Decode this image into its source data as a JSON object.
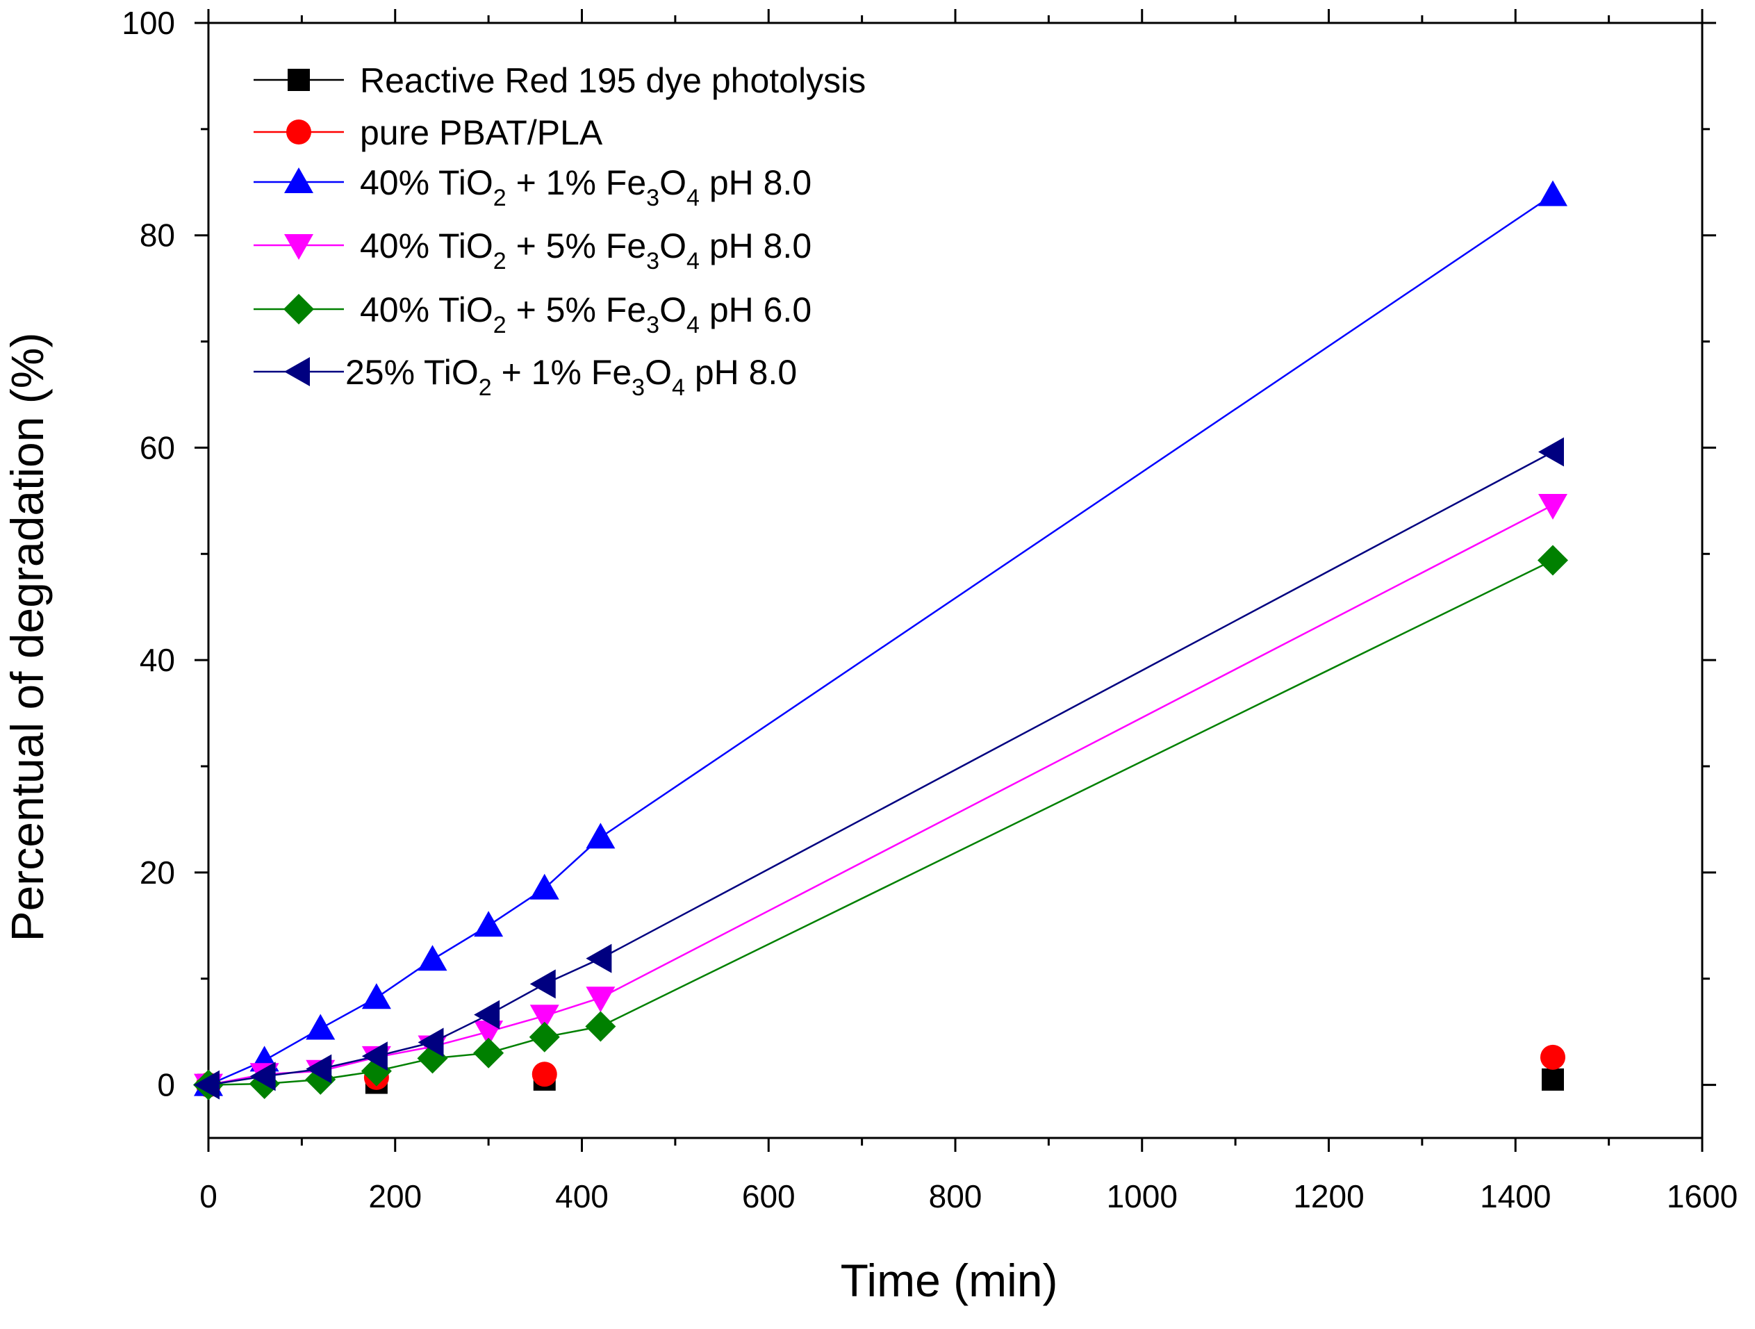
{
  "chart_data": {
    "type": "line",
    "title": "",
    "xlabel": "Time (min)",
    "ylabel": "Percentual of degradation (%)",
    "xlim": [
      0,
      1600
    ],
    "ylim": [
      -5,
      100
    ],
    "xticks": [
      0,
      200,
      400,
      600,
      800,
      1000,
      1200,
      1400,
      1600
    ],
    "yticks": [
      0,
      20,
      40,
      60,
      80,
      100
    ],
    "x_minor_step": 100,
    "y_minor_step": 10,
    "grid": false,
    "legend_position": "top-left",
    "series": [
      {
        "name": "Reactive Red 195 dye photolysis",
        "legend": {
          "pre": "Reactive Red 195 dye photolysis"
        },
        "color": "#000000",
        "marker": "square",
        "line": false,
        "x": [
          0,
          180,
          360,
          1440
        ],
        "y": [
          0,
          0.2,
          0.5,
          0.5
        ]
      },
      {
        "name": "pure PBAT/PLA",
        "legend": {
          "pre": "pure PBAT/PLA"
        },
        "color": "#ff0000",
        "marker": "circle",
        "line": false,
        "x": [
          0,
          180,
          360,
          1440
        ],
        "y": [
          0,
          0.7,
          1.0,
          2.6
        ]
      },
      {
        "name": "40% TiO2 + 1% Fe3O4 pH 8.0",
        "legend": {
          "pre": "40% TiO",
          "s1": "2",
          "mid": " + 1% Fe",
          "s2": "3",
          "mid2": "O",
          "s3": "4",
          "post": " pH 8.0"
        },
        "color": "#0000ff",
        "marker": "triangle-up",
        "line": true,
        "x": [
          0,
          60,
          120,
          180,
          240,
          300,
          360,
          420,
          1440
        ],
        "y": [
          0,
          2.3,
          5.3,
          8.2,
          11.8,
          15.0,
          18.5,
          23.3,
          83.8
        ]
      },
      {
        "name": "40% TiO2 + 5% Fe3O4 pH 8.0",
        "legend": {
          "pre": "40% TiO",
          "s1": "2",
          "mid": " + 5% Fe",
          "s2": "3",
          "mid2": "O",
          "s3": "4",
          "post": " pH 8.0"
        },
        "color": "#ff00ff",
        "marker": "triangle-down",
        "line": true,
        "x": [
          0,
          60,
          120,
          180,
          240,
          300,
          360,
          420,
          1440
        ],
        "y": [
          0,
          1.0,
          1.3,
          2.6,
          3.6,
          5.0,
          6.5,
          8.2,
          54.6
        ]
      },
      {
        "name": "40% TiO2 + 5% Fe3O4 pH 6.0",
        "legend": {
          "pre": "40% TiO",
          "s1": "2",
          "mid": " + 5% Fe",
          "s2": "3",
          "mid2": "O",
          "s3": "4",
          "post": " pH 6.0"
        },
        "color": "#008000",
        "marker": "diamond",
        "line": true,
        "x": [
          0,
          60,
          120,
          180,
          240,
          300,
          360,
          420,
          1440
        ],
        "y": [
          0,
          0.1,
          0.5,
          1.3,
          2.5,
          3.0,
          4.5,
          5.5,
          49.4
        ]
      },
      {
        "name": "25% TiO2 + 1% Fe3O4 pH 8.0",
        "legend": {
          "pre": "25% TiO",
          "s1": "2",
          "mid": " + 1% Fe",
          "s2": "3",
          "mid2": "O",
          "s3": "4",
          "post": " pH 8.0"
        },
        "color": "#000080",
        "marker": "triangle-left",
        "line": true,
        "x": [
          0,
          60,
          120,
          180,
          240,
          300,
          360,
          420,
          1440
        ],
        "y": [
          0,
          0.8,
          1.5,
          2.7,
          4.0,
          6.6,
          9.5,
          11.9,
          59.6
        ]
      }
    ]
  }
}
